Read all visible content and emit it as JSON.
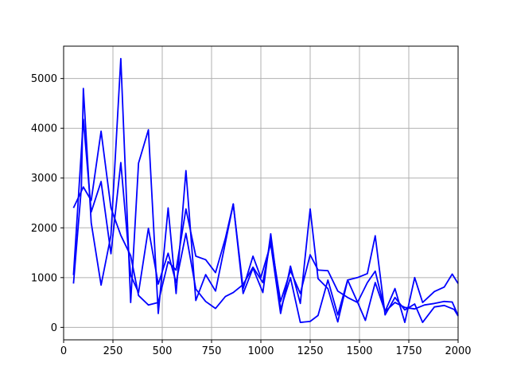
{
  "chart_data": {
    "type": "line",
    "title": "",
    "xlabel": "",
    "ylabel": "",
    "xlim": [
      0,
      2000
    ],
    "ylim": [
      -250,
      5650
    ],
    "xticks": [
      0,
      250,
      500,
      750,
      1000,
      1250,
      1500,
      1750,
      2000
    ],
    "yticks": [
      0,
      1000,
      2000,
      3000,
      4000,
      5000
    ],
    "grid": true,
    "legend": "none",
    "line_color": "#0000ff",
    "series": [
      {
        "color": "#0000ff",
        "x": [
          50,
          90,
          100,
          140,
          190,
          240,
          290,
          340,
          380,
          430,
          480,
          530,
          570,
          620,
          670,
          720,
          770,
          860,
          910,
          960,
          1000,
          1050,
          1100,
          1150,
          1200,
          1250,
          1290,
          1340,
          1390,
          1440,
          1490,
          1530,
          1580,
          1630,
          1680,
          1730,
          1780,
          1820,
          1880,
          1930,
          1970,
          2000
        ],
        "y": [
          880,
          2800,
          4800,
          2100,
          850,
          1850,
          5400,
          500,
          3300,
          3970,
          280,
          2400,
          680,
          3150,
          540,
          1060,
          730,
          2480,
          780,
          1430,
          1000,
          1680,
          280,
          1230,
          480,
          2380,
          980,
          780,
          110,
          950,
          510,
          140,
          900,
          320,
          780,
          100,
          1000,
          500,
          720,
          810,
          1070,
          880
        ]
      },
      {
        "color": "#0000ff",
        "x": [
          50,
          100,
          140,
          190,
          240,
          290,
          340,
          380,
          430,
          480,
          530,
          570,
          620,
          670,
          720,
          770,
          820,
          860,
          910,
          960,
          1010,
          1050,
          1100,
          1150,
          1200,
          1250,
          1290,
          1340,
          1390,
          1440,
          1490,
          1540,
          1580,
          1630,
          1680,
          1730,
          1780,
          1820,
          1880,
          1930,
          1980,
          2000
        ],
        "y": [
          2400,
          2820,
          2550,
          3940,
          2400,
          1850,
          1440,
          640,
          450,
          500,
          1320,
          1150,
          2380,
          1430,
          1360,
          1100,
          1790,
          2480,
          680,
          1190,
          700,
          1880,
          360,
          1000,
          100,
          120,
          240,
          950,
          250,
          950,
          1000,
          1080,
          1840,
          250,
          600,
          350,
          470,
          100,
          410,
          440,
          360,
          230
        ]
      },
      {
        "color": "#0000ff",
        "x": [
          50,
          100,
          140,
          190,
          240,
          290,
          340,
          380,
          430,
          480,
          530,
          570,
          620,
          670,
          720,
          770,
          820,
          860,
          910,
          960,
          1010,
          1050,
          1100,
          1150,
          1200,
          1250,
          1290,
          1340,
          1390,
          1440,
          1490,
          1540,
          1580,
          1630,
          1680,
          1730,
          1780,
          1830,
          1880,
          1930,
          1970,
          2000
        ],
        "y": [
          1050,
          4180,
          2320,
          2930,
          1480,
          3310,
          1050,
          700,
          1990,
          870,
          1490,
          900,
          1890,
          770,
          520,
          380,
          620,
          700,
          860,
          1210,
          900,
          1760,
          520,
          1140,
          680,
          1460,
          1150,
          1140,
          730,
          600,
          500,
          900,
          1130,
          320,
          500,
          400,
          370,
          450,
          480,
          520,
          510,
          240
        ]
      }
    ]
  }
}
